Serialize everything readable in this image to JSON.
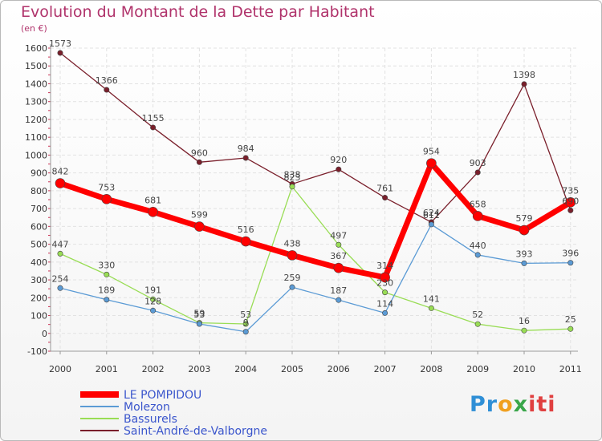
{
  "chart_data": {
    "type": "line",
    "title": "Evolution du Montant de la Dette par Habitant",
    "subtitle": "(en €)",
    "categories": [
      "2000",
      "2001",
      "2002",
      "2003",
      "2004",
      "2005",
      "2006",
      "2007",
      "2008",
      "2009",
      "2010",
      "2011"
    ],
    "ylim": [
      -100,
      1600
    ],
    "yticks": [
      -100,
      0,
      100,
      200,
      300,
      400,
      500,
      600,
      700,
      800,
      900,
      1000,
      1100,
      1200,
      1300,
      1400,
      1500,
      1600
    ],
    "grid": true,
    "legend_position": "bottom-left",
    "series": [
      {
        "name": "Saint-André-de-Valborgne",
        "color": "#7a1f2b",
        "values": [
          1573,
          1366,
          1155,
          960,
          984,
          838,
          920,
          761,
          624,
          903,
          1398,
          690
        ]
      },
      {
        "name": "Bassurels",
        "color": "#99dd55",
        "values": [
          447,
          330,
          191,
          59,
          53,
          823,
          497,
          230,
          141,
          52,
          16,
          25
        ]
      },
      {
        "name": "Molezon",
        "color": "#5b9bd5",
        "values": [
          254,
          189,
          128,
          53,
          9,
          259,
          187,
          114,
          611,
          440,
          393,
          396
        ]
      },
      {
        "name": "LE POMPIDOU",
        "color": "#ff0000",
        "values": [
          842,
          753,
          681,
          599,
          516,
          438,
          367,
          314,
          954,
          658,
          579,
          735
        ]
      }
    ],
    "logo_text": [
      "Pr",
      "o",
      "x",
      "iti"
    ]
  }
}
